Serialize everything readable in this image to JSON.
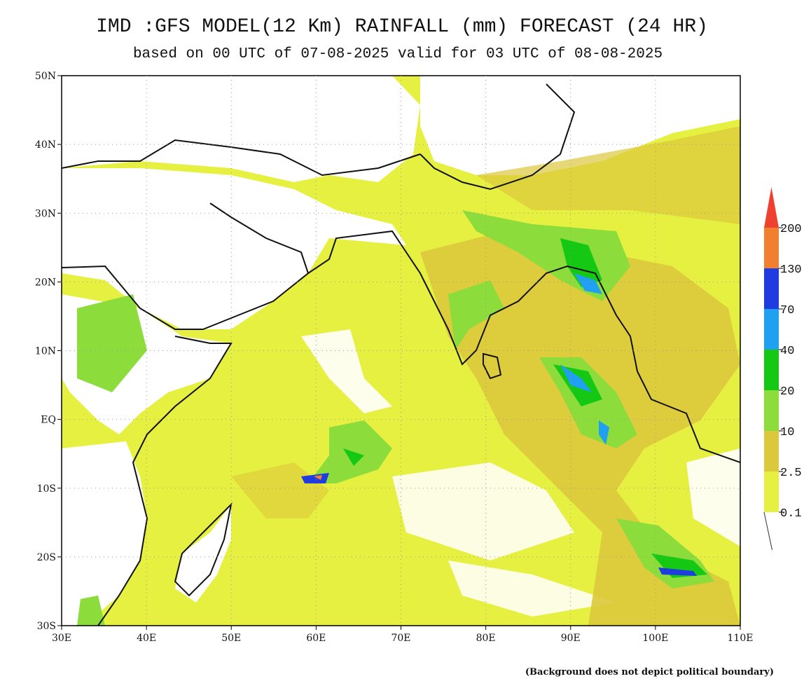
{
  "header": {
    "title": "IMD :GFS MODEL(12 Km) RAINFALL (mm) FORECAST (24 HR)",
    "subtitle": "based on 00 UTC of 07-08-2025 valid for 03 UTC of 08-08-2025"
  },
  "map": {
    "lat_labels": [
      "50N",
      "40N",
      "30N",
      "20N",
      "10N",
      "EQ",
      "10S",
      "20S",
      "30S"
    ],
    "lon_labels": [
      "30E",
      "40E",
      "50E",
      "60E",
      "70E",
      "80E",
      "90E",
      "100E",
      "110E"
    ]
  },
  "legend": {
    "levels": [
      "200",
      "130",
      "70",
      "40",
      "20",
      "10",
      "2.5",
      "0.1"
    ],
    "colors": [
      "#f04030",
      "#f08030",
      "#1e3ce0",
      "#20a0f0",
      "#14c814",
      "#8cdc3c",
      "#dcc83c",
      "#e6f040"
    ]
  },
  "footnote": "(Background does not depict political boundary)"
}
